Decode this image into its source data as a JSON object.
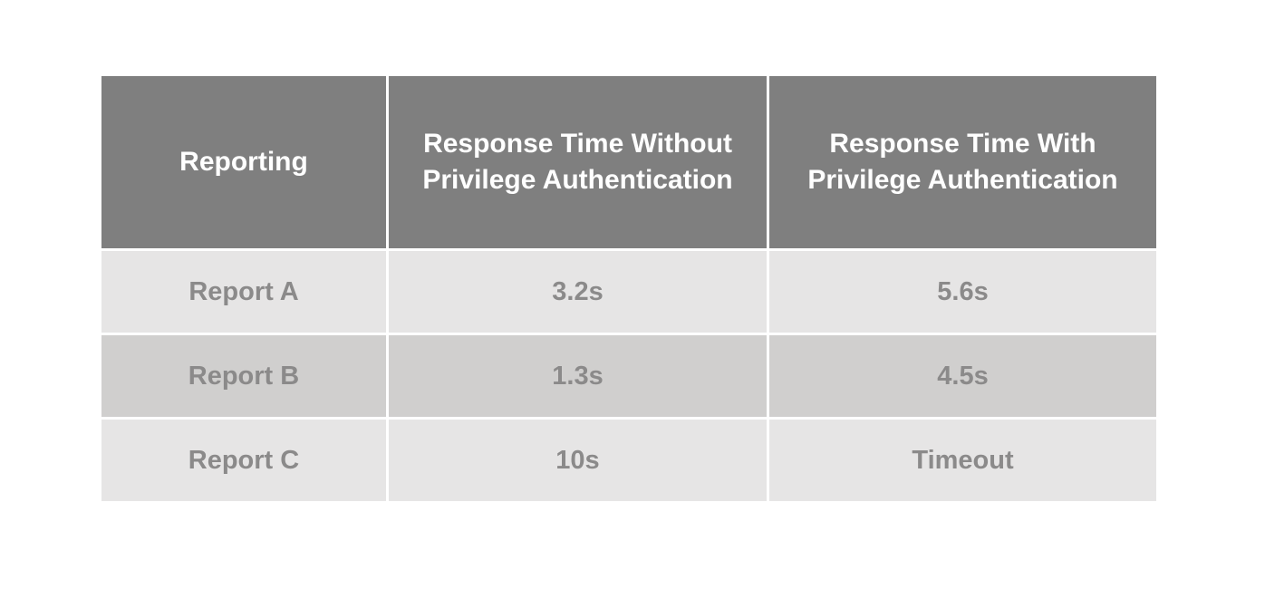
{
  "table": {
    "columns": [
      "Reporting",
      "Response Time Without Privilege Authentication",
      "Response Time With Privilege Authentication"
    ],
    "rows": [
      {
        "cells": [
          "Report A",
          "3.2s",
          "5.6s"
        ]
      },
      {
        "cells": [
          "Report B",
          "1.3s",
          "4.5s"
        ]
      },
      {
        "cells": [
          "Report C",
          "10s",
          "Timeout"
        ]
      }
    ],
    "colors": {
      "page_bg": "#ffffff",
      "header_bg": "#7f7f7f",
      "header_text": "#ffffff",
      "row_light_bg": "#e6e5e5",
      "row_dark_bg": "#d0cfce",
      "row_text": "#8b8a8a"
    }
  }
}
